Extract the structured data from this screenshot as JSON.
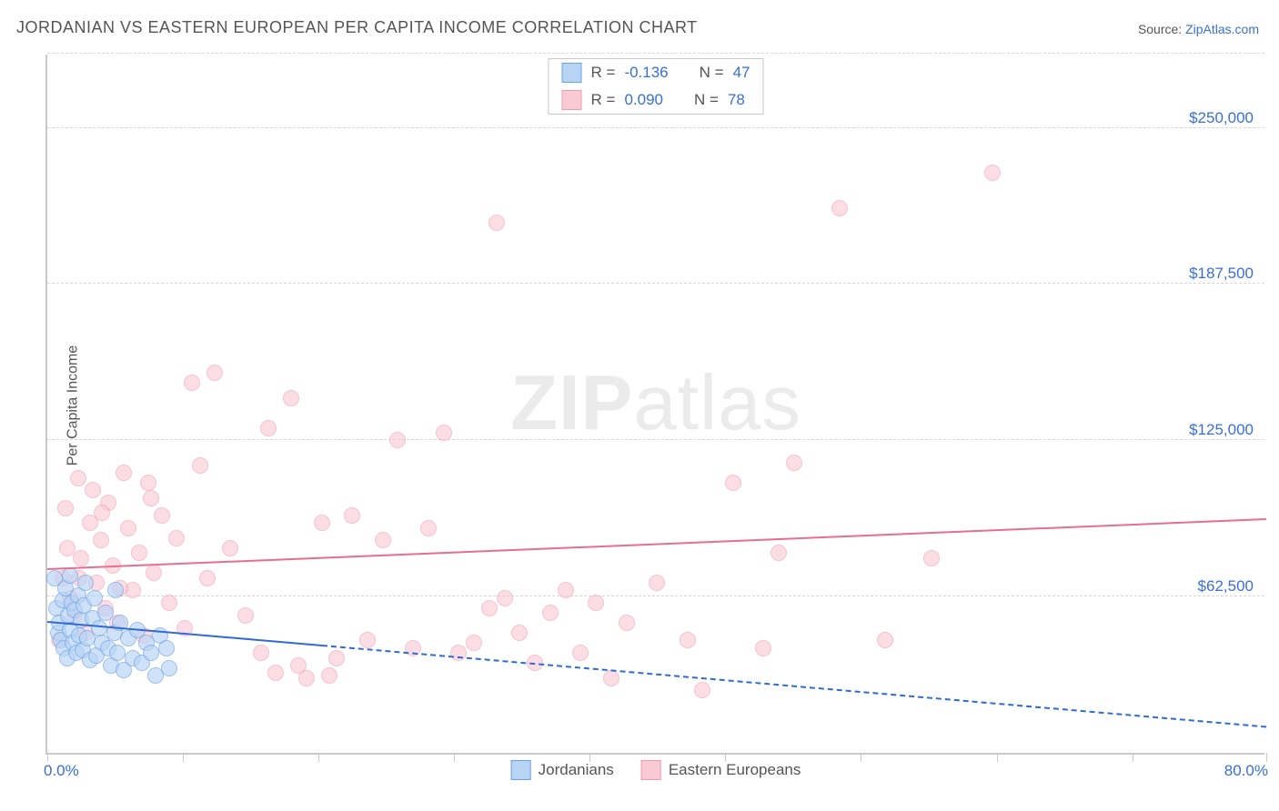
{
  "title": "JORDANIAN VS EASTERN EUROPEAN PER CAPITA INCOME CORRELATION CHART",
  "source_label": "Source: ",
  "source_link": "ZipAtlas.com",
  "ylabel": "Per Capita Income",
  "watermark_bold": "ZIP",
  "watermark_rest": "atlas",
  "chart": {
    "type": "scatter",
    "xlim": [
      0,
      80
    ],
    "ylim": [
      0,
      280000
    ],
    "x_unit": "%",
    "xlim_labels": [
      "0.0%",
      "80.0%"
    ],
    "y_ticks": [
      62500,
      125000,
      187500,
      250000
    ],
    "y_tick_labels": [
      "$62,500",
      "$125,000",
      "$187,500",
      "$250,000"
    ],
    "x_tick_positions": [
      0,
      8.9,
      17.8,
      26.7,
      35.6,
      44.5,
      53.4,
      62.3,
      71.2,
      80
    ],
    "grid_color": "#d6d6d6",
    "axis_color": "#c9c9c9",
    "background_color": "#ffffff",
    "marker_radius": 9,
    "marker_border_width": 1.5,
    "series": [
      {
        "key": "jordanians",
        "label": "Jordanians",
        "fill": "#b7d4f5",
        "stroke": "#6aa1e6",
        "fill_opacity": 0.65,
        "R": "-0.136",
        "N": "47",
        "trend": {
          "y_at_xmin": 52000,
          "y_at_xmax": 10000,
          "solid_until_x": 18,
          "color": "#2e6bd6",
          "width": 2.5
        },
        "points": [
          [
            0.5,
            70000
          ],
          [
            0.6,
            58000
          ],
          [
            0.7,
            48000
          ],
          [
            0.8,
            52000
          ],
          [
            0.9,
            45000
          ],
          [
            1.0,
            61000
          ],
          [
            1.1,
            42000
          ],
          [
            1.2,
            66000
          ],
          [
            1.3,
            38000
          ],
          [
            1.4,
            55000
          ],
          [
            1.5,
            49000
          ],
          [
            1.6,
            60000
          ],
          [
            1.7,
            44000
          ],
          [
            1.8,
            57000
          ],
          [
            1.9,
            40000
          ],
          [
            2.0,
            63000
          ],
          [
            2.1,
            47000
          ],
          [
            2.2,
            53000
          ],
          [
            2.3,
            41000
          ],
          [
            2.4,
            59000
          ],
          [
            2.6,
            46000
          ],
          [
            2.8,
            37000
          ],
          [
            3.0,
            54000
          ],
          [
            3.2,
            39000
          ],
          [
            3.4,
            50000
          ],
          [
            3.6,
            44000
          ],
          [
            3.8,
            56000
          ],
          [
            4.0,
            42000
          ],
          [
            4.2,
            35000
          ],
          [
            4.4,
            48000
          ],
          [
            4.6,
            40000
          ],
          [
            4.8,
            52000
          ],
          [
            5.0,
            33000
          ],
          [
            5.3,
            46000
          ],
          [
            5.6,
            38000
          ],
          [
            5.9,
            49000
          ],
          [
            6.2,
            36000
          ],
          [
            6.5,
            44000
          ],
          [
            6.8,
            40000
          ],
          [
            7.1,
            31000
          ],
          [
            7.4,
            47000
          ],
          [
            4.5,
            65000
          ],
          [
            3.1,
            62000
          ],
          [
            2.5,
            68000
          ],
          [
            1.5,
            71000
          ],
          [
            8.0,
            34000
          ],
          [
            7.8,
            42000
          ]
        ]
      },
      {
        "key": "eastern_europeans",
        "label": "Eastern Europeans",
        "fill": "#f9c9d4",
        "stroke": "#f39ab0",
        "fill_opacity": 0.6,
        "R": "0.090",
        "N": "78",
        "trend": {
          "y_at_xmin": 73000,
          "y_at_xmax": 93000,
          "solid_until_x": 80,
          "color": "#e86e8f",
          "width": 2.5
        },
        "points": [
          [
            0.8,
            45000
          ],
          [
            1.0,
            70000
          ],
          [
            1.2,
            98000
          ],
          [
            1.5,
            62000
          ],
          [
            1.8,
            55000
          ],
          [
            2.0,
            110000
          ],
          [
            2.2,
            78000
          ],
          [
            2.5,
            48000
          ],
          [
            2.8,
            92000
          ],
          [
            3.0,
            105000
          ],
          [
            3.2,
            68000
          ],
          [
            3.5,
            85000
          ],
          [
            3.8,
            58000
          ],
          [
            4.0,
            100000
          ],
          [
            4.3,
            75000
          ],
          [
            4.6,
            52000
          ],
          [
            5.0,
            112000
          ],
          [
            5.3,
            90000
          ],
          [
            5.6,
            65000
          ],
          [
            6.0,
            80000
          ],
          [
            6.3,
            47000
          ],
          [
            6.6,
            108000
          ],
          [
            7.0,
            72000
          ],
          [
            7.5,
            95000
          ],
          [
            8.0,
            60000
          ],
          [
            8.5,
            86000
          ],
          [
            9.0,
            50000
          ],
          [
            9.5,
            148000
          ],
          [
            10.0,
            115000
          ],
          [
            10.5,
            70000
          ],
          [
            11.0,
            152000
          ],
          [
            12.0,
            82000
          ],
          [
            13.0,
            55000
          ],
          [
            14.0,
            40000
          ],
          [
            14.5,
            130000
          ],
          [
            15.0,
            32000
          ],
          [
            16.0,
            142000
          ],
          [
            16.5,
            35000
          ],
          [
            17.0,
            30000
          ],
          [
            18.0,
            92000
          ],
          [
            18.5,
            31000
          ],
          [
            19.0,
            38000
          ],
          [
            20.0,
            95000
          ],
          [
            21.0,
            45000
          ],
          [
            22.0,
            85000
          ],
          [
            23.0,
            125000
          ],
          [
            24.0,
            42000
          ],
          [
            25.0,
            90000
          ],
          [
            26.0,
            128000
          ],
          [
            27.0,
            40000
          ],
          [
            28.0,
            44000
          ],
          [
            29.0,
            58000
          ],
          [
            29.5,
            212000
          ],
          [
            30.0,
            62000
          ],
          [
            31.0,
            48000
          ],
          [
            32.0,
            36000
          ],
          [
            33.0,
            56000
          ],
          [
            34.0,
            65000
          ],
          [
            35.0,
            40000
          ],
          [
            36.0,
            60000
          ],
          [
            37.0,
            30000
          ],
          [
            38.0,
            52000
          ],
          [
            40.0,
            68000
          ],
          [
            42.0,
            45000
          ],
          [
            43.0,
            25000
          ],
          [
            45.0,
            108000
          ],
          [
            47.0,
            42000
          ],
          [
            48.0,
            80000
          ],
          [
            49.0,
            116000
          ],
          [
            52.0,
            218000
          ],
          [
            55.0,
            45000
          ],
          [
            58.0,
            78000
          ],
          [
            62.0,
            232000
          ],
          [
            1.3,
            82000
          ],
          [
            2.1,
            70000
          ],
          [
            3.6,
            96000
          ],
          [
            4.8,
            66000
          ],
          [
            6.8,
            102000
          ]
        ]
      }
    ]
  },
  "legend_top_prefix_R": "R = ",
  "legend_top_prefix_N": "N = ",
  "colors": {
    "text": "#555555",
    "link": "#3a6fd8",
    "value": "#3a6fd8"
  }
}
